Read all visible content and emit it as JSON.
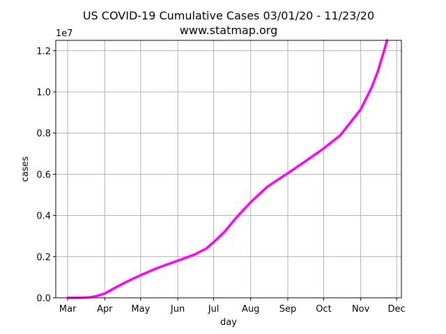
{
  "chart_data": {
    "type": "line",
    "title": "US COVID-19 Cumulative Cases 03/01/20 - 11/23/20",
    "subtitle": "www.statmap.org",
    "xlabel": "day",
    "ylabel": "cases",
    "y_offset_label": "1e7",
    "grid": true,
    "line_color": "#ff00ff",
    "x_tick_labels": [
      "Mar",
      "Apr",
      "May",
      "Jun",
      "Jul",
      "Aug",
      "Sep",
      "Oct",
      "Nov",
      "Dec"
    ],
    "x_tick_dates": [
      "2020-03-01",
      "2020-04-01",
      "2020-05-01",
      "2020-06-01",
      "2020-07-01",
      "2020-08-01",
      "2020-09-01",
      "2020-10-01",
      "2020-11-01",
      "2020-12-01"
    ],
    "xlim": [
      "2020-02-20",
      "2020-12-05"
    ],
    "y_tick_labels": [
      "0.0",
      "0.2",
      "0.4",
      "0.6",
      "0.8",
      "1.0",
      "1.2"
    ],
    "y_tick_values": [
      0,
      2000000,
      4000000,
      6000000,
      8000000,
      10000000,
      12000000
    ],
    "ylim": [
      0,
      12500000
    ],
    "series": [
      {
        "x": [
          "2020-03-01",
          "2020-03-10",
          "2020-03-15",
          "2020-03-20",
          "2020-03-25",
          "2020-04-01",
          "2020-04-10",
          "2020-04-20",
          "2020-05-01",
          "2020-05-15",
          "2020-06-01",
          "2020-06-15",
          "2020-06-25",
          "2020-07-01",
          "2020-07-10",
          "2020-07-20",
          "2020-08-01",
          "2020-08-15",
          "2020-09-01",
          "2020-09-15",
          "2020-10-01",
          "2020-10-15",
          "2020-11-01",
          "2020-11-10",
          "2020-11-15",
          "2020-11-20",
          "2020-11-23"
        ],
        "y": [
          0,
          0,
          10000,
          30000,
          80000,
          210000,
          500000,
          800000,
          1100000,
          1450000,
          1800000,
          2100000,
          2400000,
          2700000,
          3200000,
          3900000,
          4650000,
          5400000,
          6050000,
          6600000,
          7250000,
          7900000,
          9150000,
          10200000,
          10950000,
          11900000,
          12500000
        ]
      }
    ]
  }
}
